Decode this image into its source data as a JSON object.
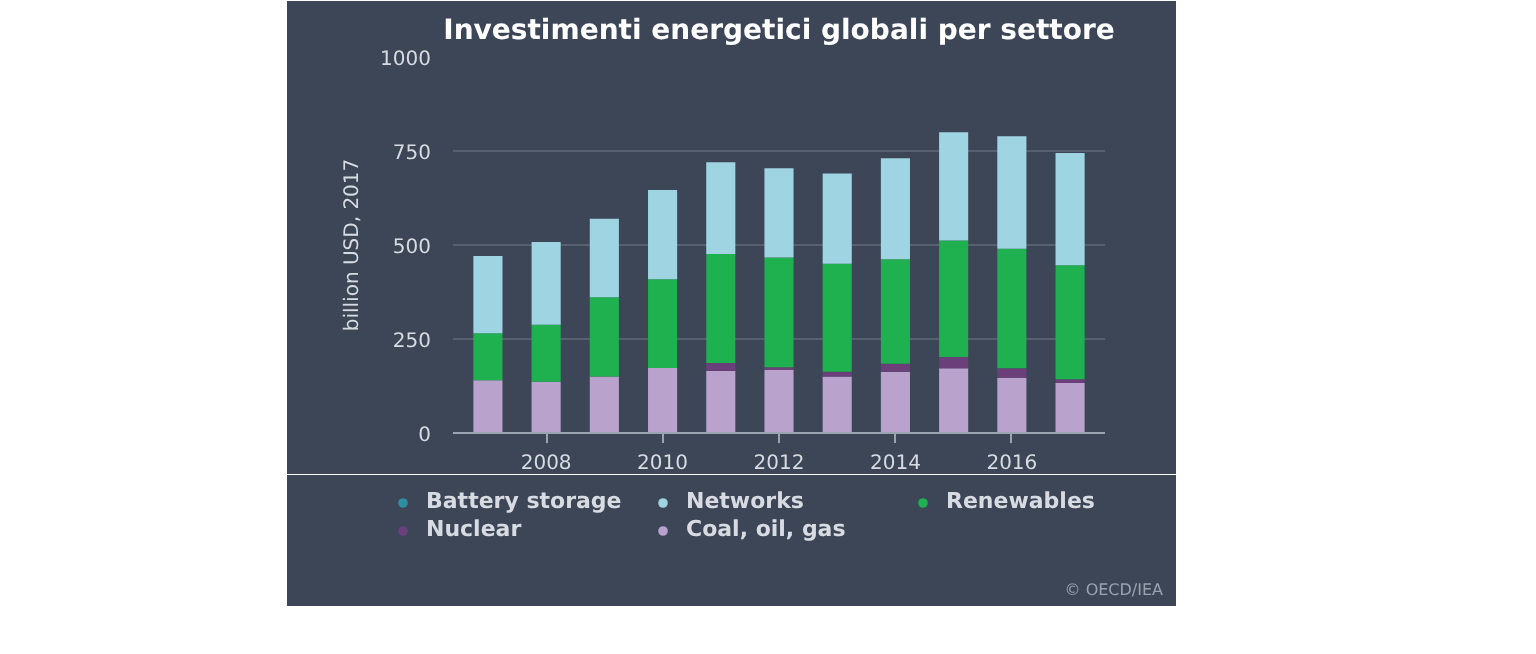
{
  "chart_data": {
    "type": "bar",
    "stacked": true,
    "title": "Investimenti energetici globali per settore",
    "ylabel": "billion USD, 2017",
    "x": [
      2007,
      2008,
      2009,
      2010,
      2011,
      2012,
      2013,
      2014,
      2015,
      2016,
      2017
    ],
    "series": [
      {
        "name": "Coal, oil, gas",
        "color": "#b9a3cc",
        "values": [
          140,
          136,
          150,
          173,
          165,
          168,
          150,
          163,
          172,
          147,
          133
        ]
      },
      {
        "name": "Nuclear",
        "color": "#6a3f7a",
        "values": [
          0,
          0,
          0,
          0,
          21,
          7,
          13,
          21,
          30,
          25,
          10
        ]
      },
      {
        "name": "Renewables",
        "color": "#1fb050",
        "values": [
          125,
          152,
          211,
          236,
          290,
          292,
          287,
          278,
          310,
          318,
          303
        ]
      },
      {
        "name": "Battery storage",
        "color": "#2e8fa0",
        "values": [
          0,
          0,
          0,
          0,
          0,
          0,
          0,
          0,
          0,
          0,
          0
        ]
      },
      {
        "name": "Networks",
        "color": "#9fd4e2",
        "values": [
          206,
          220,
          209,
          237,
          244,
          237,
          240,
          269,
          288,
          299,
          299
        ]
      }
    ],
    "xlim": [
      2006.4,
      2017.6
    ],
    "xticks": [
      2008,
      2010,
      2012,
      2014,
      2016
    ],
    "ylim": [
      0,
      1000
    ],
    "yticks": [
      0,
      250,
      500,
      750,
      1000
    ],
    "grid": "y",
    "legend": "bottom",
    "annotations": [
      "© OECD/IEA"
    ]
  }
}
